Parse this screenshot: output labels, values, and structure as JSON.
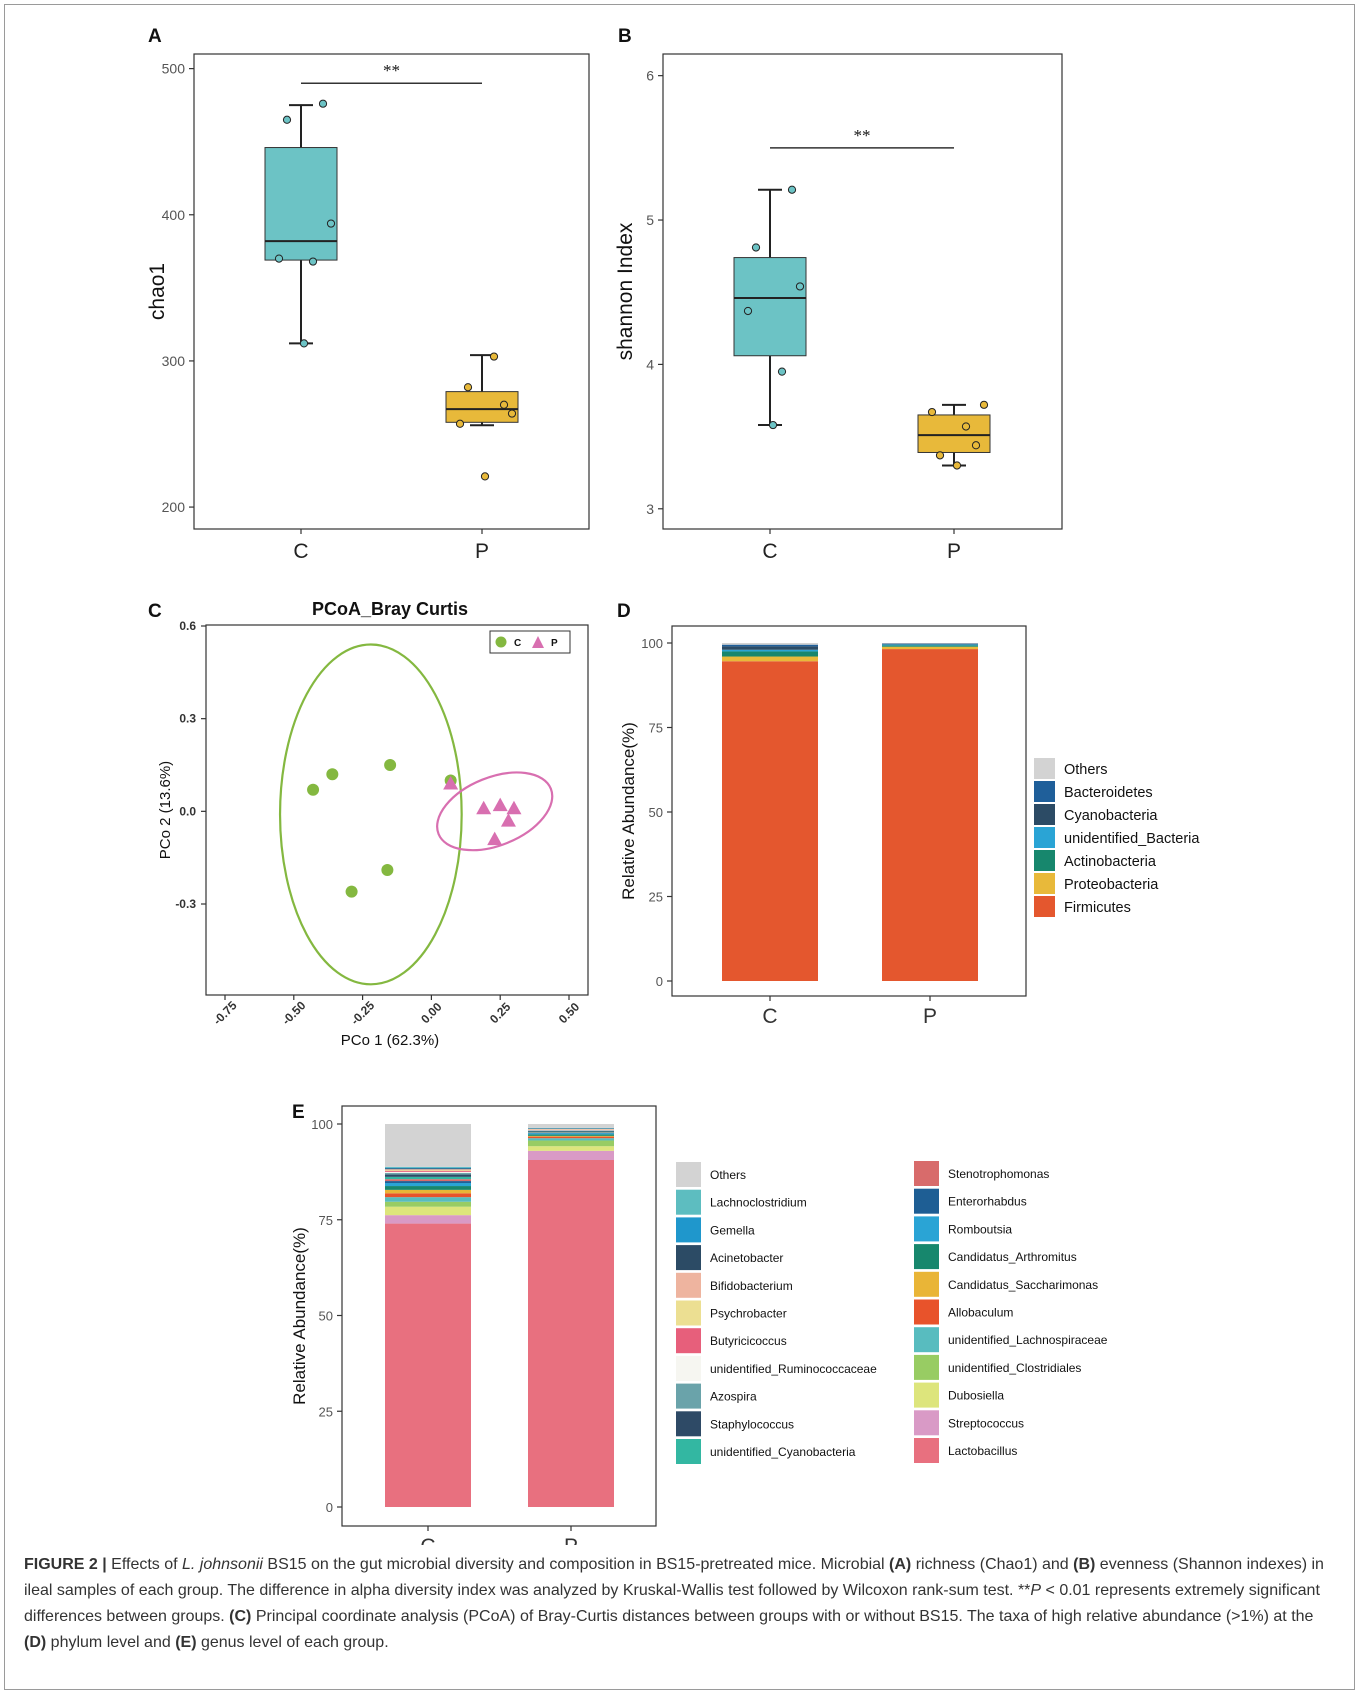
{
  "panels": {
    "a": {
      "letter": "A",
      "ylabel": "chao1",
      "yticks": [
        "200",
        "300",
        "400",
        "500"
      ],
      "significance": "**"
    },
    "b": {
      "letter": "B",
      "ylabel": "shannon Index",
      "yticks": [
        "3",
        "4",
        "5",
        "6"
      ],
      "significance": "**"
    },
    "c": {
      "letter": "C",
      "title": "PCoA_Bray Curtis",
      "xlabel": "PCo 1 (62.3%)",
      "ylabel": "PCo 2 (13.6%)",
      "xticks": [
        "-0.75",
        "-0.50",
        "-0.25",
        "0.00",
        "0.25",
        "0.50"
      ],
      "yticks": [
        "-0.3",
        "0.0",
        "0.3",
        "0.6"
      ],
      "legend": [
        "C",
        "P"
      ]
    },
    "d": {
      "letter": "D",
      "ylabel": "Relative Abundance(%)",
      "yticks": [
        "0",
        "25",
        "50",
        "75",
        "100"
      ],
      "legend": [
        "Others",
        "Bacteroidetes",
        "Cyanobacteria",
        "unidentified_Bacteria",
        "Actinobacteria",
        "Proteobacteria",
        "Firmicutes"
      ]
    },
    "e": {
      "letter": "E",
      "ylabel": "Relative Abundance(%)",
      "yticks": [
        "0",
        "25",
        "50",
        "75",
        "100"
      ],
      "legend_col1": [
        "Others",
        "Lachnoclostridium",
        "Gemella",
        "Acinetobacter",
        "Bifidobacterium",
        "Psychrobacter",
        "Butyricicoccus",
        "unidentified_Ruminococcaceae",
        "Azospira",
        "Staphylococcus",
        "unidentified_Cyanobacteria"
      ],
      "legend_col2": [
        "Stenotrophomonas",
        "Enterorhabdus",
        "Romboutsia",
        "Candidatus_Arthromitus",
        "Candidatus_Saccharimonas",
        "Allobaculum",
        "unidentified_Lachnospiraceae",
        "unidentified_Clostridiales",
        "Dubosiella",
        "Streptococcus",
        "Lactobacillus"
      ]
    }
  },
  "colors": {
    "group_c": "#6cc3c5",
    "group_p": "#e8b93a",
    "pcoa_c": "#84b840",
    "pcoa_p": "#d86fb0",
    "firmicutes": "#e4572e"
  },
  "chart_data": [
    {
      "type": "box",
      "panel": "A",
      "ylabel": "chao1",
      "ylim": [
        185,
        510
      ],
      "categories": [
        "C",
        "P"
      ],
      "boxes": [
        {
          "name": "C",
          "min": 312,
          "q1": 369,
          "median": 382,
          "q3": 446,
          "max": 475,
          "points": [
            465,
            476,
            394,
            370,
            368,
            312
          ]
        },
        {
          "name": "P",
          "min": 256,
          "q1": 258,
          "median": 267,
          "q3": 279,
          "max": 304,
          "points": [
            282,
            270,
            264,
            257,
            303,
            221
          ]
        }
      ],
      "significance": {
        "label": "**",
        "y": 490
      }
    },
    {
      "type": "box",
      "panel": "B",
      "ylabel": "shannon Index",
      "ylim": [
        2.86,
        6.15
      ],
      "categories": [
        "C",
        "P"
      ],
      "boxes": [
        {
          "name": "C",
          "min": 3.58,
          "q1": 4.06,
          "median": 4.46,
          "q3": 4.74,
          "max": 5.21,
          "points": [
            4.81,
            5.21,
            4.54,
            4.37,
            3.95,
            3.58
          ]
        },
        {
          "name": "P",
          "min": 3.3,
          "q1": 3.39,
          "median": 3.51,
          "q3": 3.65,
          "max": 3.72,
          "points": [
            3.37,
            3.44,
            3.72,
            3.67,
            3.57,
            3.3
          ]
        }
      ],
      "significance": {
        "label": "**",
        "y": 5.5
      }
    },
    {
      "type": "scatter",
      "panel": "C",
      "title": "PCoA_Bray Curtis",
      "xlabel": "PCo 1 (62.3%)",
      "ylabel": "PCo 2 (13.6%)",
      "xlim": [
        -0.8,
        0.53
      ],
      "ylim": [
        -0.58,
        0.6
      ],
      "series": [
        {
          "name": "C",
          "marker": "circle",
          "points": [
            [
              -0.43,
              0.07
            ],
            [
              -0.36,
              0.12
            ],
            [
              -0.15,
              0.15
            ],
            [
              0.07,
              0.1
            ],
            [
              -0.16,
              -0.19
            ],
            [
              -0.29,
              -0.26
            ]
          ],
          "ellipse": {
            "cx": -0.22,
            "cy": -0.01,
            "rx": 0.33,
            "ry": 0.55,
            "angle": 0
          }
        },
        {
          "name": "P",
          "marker": "triangle",
          "points": [
            [
              0.07,
              0.09
            ],
            [
              0.19,
              0.01
            ],
            [
              0.25,
              0.02
            ],
            [
              0.3,
              0.01
            ],
            [
              0.28,
              -0.03
            ],
            [
              0.23,
              -0.09
            ]
          ],
          "ellipse": {
            "cx": 0.23,
            "cy": 0.0,
            "rx": 0.22,
            "ry": 0.11,
            "angle": -22
          }
        }
      ],
      "legend": {
        "position": "top-right"
      }
    },
    {
      "type": "bar",
      "stacked": true,
      "panel": "D",
      "ylabel": "Relative Abundance(%)",
      "ylim": [
        0,
        100
      ],
      "categories": [
        "C",
        "P"
      ],
      "series": [
        {
          "name": "Firmicutes",
          "color": "#e4572e",
          "values": [
            94.6,
            98.2
          ]
        },
        {
          "name": "Proteobacteria",
          "color": "#e8b93a",
          "values": [
            1.4,
            0.7
          ]
        },
        {
          "name": "Actinobacteria",
          "color": "#17876d",
          "values": [
            1.5,
            0.4
          ]
        },
        {
          "name": "unidentified_Bacteria",
          "color": "#2aa4d5",
          "values": [
            0.5,
            0.3
          ]
        },
        {
          "name": "Cyanobacteria",
          "color": "#2c4b65",
          "values": [
            1.0,
            0.2
          ]
        },
        {
          "name": "Bacteroidetes",
          "color": "#1f5f9a",
          "values": [
            0.5,
            0.1
          ]
        },
        {
          "name": "Others",
          "color": "#d3d3d3",
          "values": [
            0.5,
            0.1
          ]
        }
      ],
      "legend": {
        "position": "right"
      }
    },
    {
      "type": "bar",
      "stacked": true,
      "panel": "E",
      "ylabel": "Relative Abundance(%)",
      "ylim": [
        0,
        100
      ],
      "categories": [
        "C",
        "P"
      ],
      "series": [
        {
          "name": "Lactobacillus",
          "color": "#e8707f",
          "values": [
            74.0,
            90.6
          ]
        },
        {
          "name": "Streptococcus",
          "color": "#d99ac6",
          "values": [
            2.2,
            2.4
          ]
        },
        {
          "name": "Dubosiella",
          "color": "#dde57c",
          "values": [
            2.2,
            1.2
          ]
        },
        {
          "name": "unidentified_Clostridiales",
          "color": "#98cc63",
          "values": [
            1.3,
            1.5
          ]
        },
        {
          "name": "unidentified_Lachnospiraceae",
          "color": "#58bcbf",
          "values": [
            1.2,
            0.6
          ]
        },
        {
          "name": "Allobaculum",
          "color": "#e8532b",
          "values": [
            1.0,
            0.4
          ]
        },
        {
          "name": "Candidatus_Saccharimonas",
          "color": "#e9b537",
          "values": [
            0.9,
            0.2
          ]
        },
        {
          "name": "Candidatus_Arthromitus",
          "color": "#17876d",
          "values": [
            1.0,
            0.4
          ]
        },
        {
          "name": "Romboutsia",
          "color": "#2aa4d5",
          "values": [
            0.8,
            0.3
          ]
        },
        {
          "name": "Enterorhabdus",
          "color": "#1e5e94",
          "values": [
            0.5,
            0.1
          ]
        },
        {
          "name": "Stenotrophomonas",
          "color": "#d86b6b",
          "values": [
            0.5,
            0.1
          ]
        },
        {
          "name": "unidentified_Cyanobacteria",
          "color": "#33b7a2",
          "values": [
            0.6,
            0.2
          ]
        },
        {
          "name": "Staphylococcus",
          "color": "#2e4a66",
          "values": [
            0.6,
            0.2
          ]
        },
        {
          "name": "Azospira",
          "color": "#6aa3aa",
          "values": [
            0.4,
            0.1
          ]
        },
        {
          "name": "unidentified_Ruminococcaceae",
          "color": "#f6f6f1",
          "values": [
            0.3,
            0.1
          ]
        },
        {
          "name": "Butyricicoccus",
          "color": "#e75f7b",
          "values": [
            0.3,
            0.1
          ]
        },
        {
          "name": "Psychrobacter",
          "color": "#ecdf92",
          "values": [
            0.2,
            0.1
          ]
        },
        {
          "name": "Bifidobacterium",
          "color": "#eeb49f",
          "values": [
            0.2,
            0.1
          ]
        },
        {
          "name": "Acinetobacter",
          "color": "#2c4b65",
          "values": [
            0.2,
            0.1
          ]
        },
        {
          "name": "Gemella",
          "color": "#1f97cc",
          "values": [
            0.2,
            0.1
          ]
        },
        {
          "name": "Lachnoclostridium",
          "color": "#5dbdc0",
          "values": [
            0.2,
            0.1
          ]
        },
        {
          "name": "Others",
          "color": "#d3d3d3",
          "values": [
            11.2,
            1.0
          ]
        }
      ],
      "legend": {
        "position": "right"
      }
    }
  ],
  "caption": {
    "label": "FIGURE 2 |",
    "s1": " Effects of ",
    "species": "L. johnsonii",
    "s2": " BS15 on the gut microbial diversity and composition in BS15-pretreated mice. Microbial ",
    "ka": "(A)",
    "s3": " richness (Chao1) and ",
    "kb": "(B)",
    "s4": " evenness (Shannon indexes) in ileal samples of each group. The difference in alpha diversity index was analyzed by Kruskal-Wallis test followed by Wilcoxon rank-sum test. **",
    "pval": "P",
    "s5": " < 0.01 represents extremely significant differences between groups. ",
    "kc": "(C)",
    "s6": " Principal coordinate analysis (PCoA) of Bray-Curtis distances between groups with or without BS15. The taxa of high relative abundance (>1%) at the ",
    "kd": "(D)",
    "s7": " phylum level and ",
    "ke": "(E)",
    "s8": " genus level of each group."
  }
}
